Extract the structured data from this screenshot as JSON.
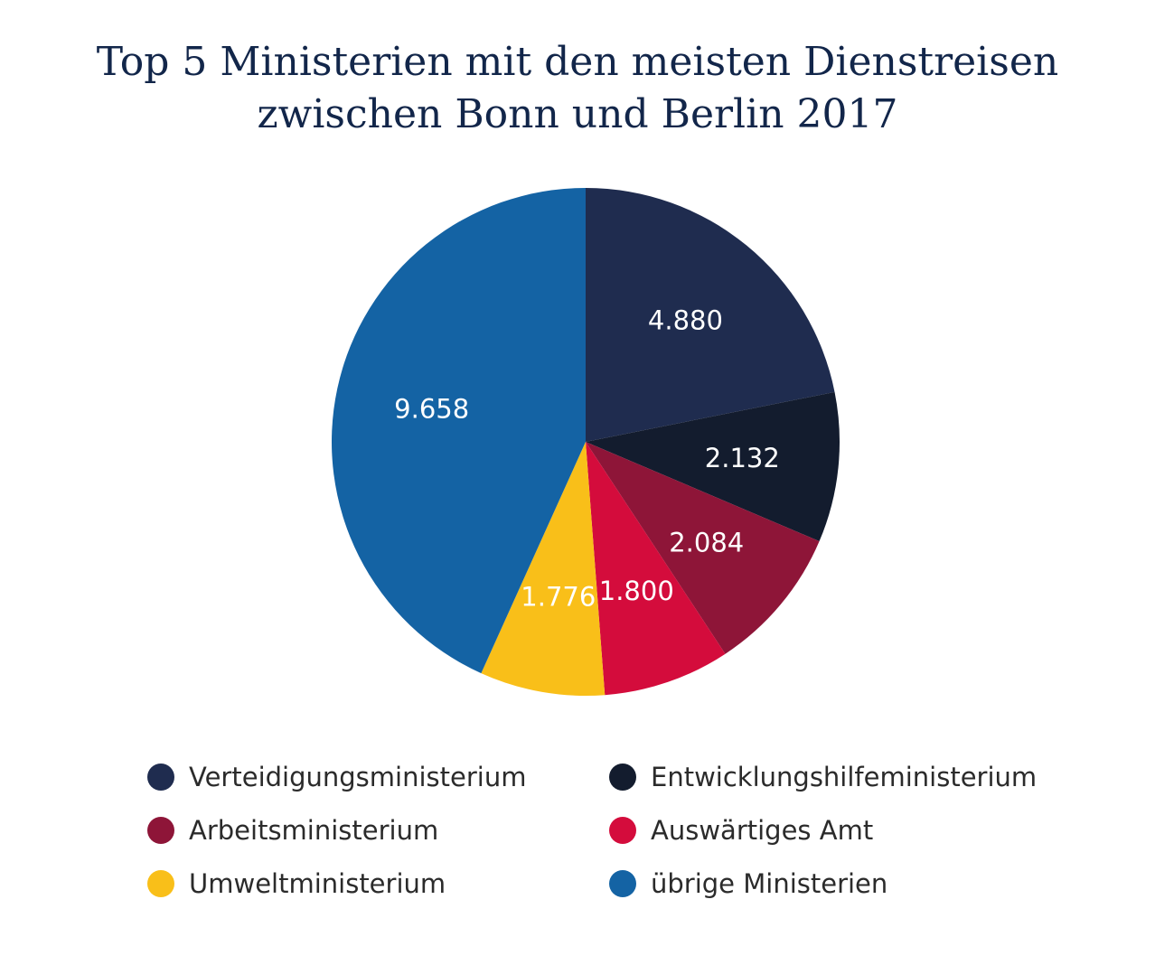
{
  "title_lines": [
    "Top 5 Ministerien mit den meisten Dienstreisen",
    "zwischen Bonn und Berlin 2017"
  ],
  "chart_data": {
    "type": "pie",
    "title": "Top 5 Ministerien mit den meisten Dienstreisen zwischen Bonn und Berlin 2017",
    "categories": [
      "Verteidigungsministerium",
      "Entwicklungshilfeministerium",
      "Arbeitsministerium",
      "Auswärtiges Amt",
      "Umweltministerium",
      "übrige Ministerien"
    ],
    "values": [
      4880,
      2132,
      2084,
      1800,
      1776,
      9658
    ],
    "labels": [
      "4.880",
      "2.132",
      "2.084",
      "1.800",
      "1.776",
      "9.658"
    ],
    "colors": [
      "#1f2c4f",
      "#131c2e",
      "#8e1538",
      "#d40c3c",
      "#f9bf19",
      "#1463a4"
    ],
    "start": "12 o'clock, clockwise",
    "legend_position": "bottom"
  }
}
